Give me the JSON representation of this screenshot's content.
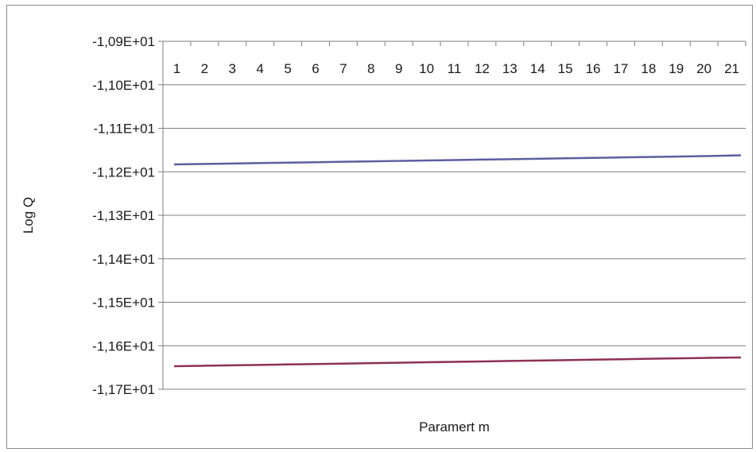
{
  "chart_data": {
    "type": "line",
    "xlabel": "Paramert m",
    "ylabel": "Log Q",
    "x": [
      1,
      2,
      3,
      4,
      5,
      6,
      7,
      8,
      9,
      10,
      11,
      12,
      13,
      14,
      15,
      16,
      17,
      18,
      19,
      20,
      21
    ],
    "x_tick_labels": [
      "1",
      "2",
      "3",
      "4",
      "5",
      "6",
      "7",
      "8",
      "9",
      "10",
      "11",
      "12",
      "13",
      "14",
      "15",
      "16",
      "17",
      "18",
      "19",
      "20",
      "21"
    ],
    "x_axis_position": "top",
    "ylim": [
      -11.7,
      -10.9
    ],
    "y_ticks": [
      -10.9,
      -11.0,
      -11.1,
      -11.2,
      -11.3,
      -11.4,
      -11.5,
      -11.6,
      -11.7
    ],
    "y_tick_labels": [
      "-1,09E+01",
      "-1,10E+01",
      "-1,11E+01",
      "-1,12E+01",
      "-1,13E+01",
      "-1,14E+01",
      "-1,15E+01",
      "-1,16E+01",
      "-1,17E+01"
    ],
    "grid": true,
    "legend": "none",
    "series": [
      {
        "color": "#5b5f9e",
        "values": [
          -11.183,
          -11.182,
          -11.181,
          -11.18,
          -11.179,
          -11.178,
          -11.177,
          -11.176,
          -11.175,
          -11.174,
          -11.173,
          -11.172,
          -11.171,
          -11.17,
          -11.169,
          -11.168,
          -11.167,
          -11.166,
          -11.165,
          -11.164,
          -11.162
        ]
      },
      {
        "color": "#8e2f57",
        "values": [
          -11.647,
          -11.646,
          -11.645,
          -11.644,
          -11.643,
          -11.642,
          -11.641,
          -11.64,
          -11.639,
          -11.638,
          -11.637,
          -11.636,
          -11.635,
          -11.634,
          -11.633,
          -11.632,
          -11.631,
          -11.63,
          -11.629,
          -11.628,
          -11.627
        ]
      }
    ]
  }
}
